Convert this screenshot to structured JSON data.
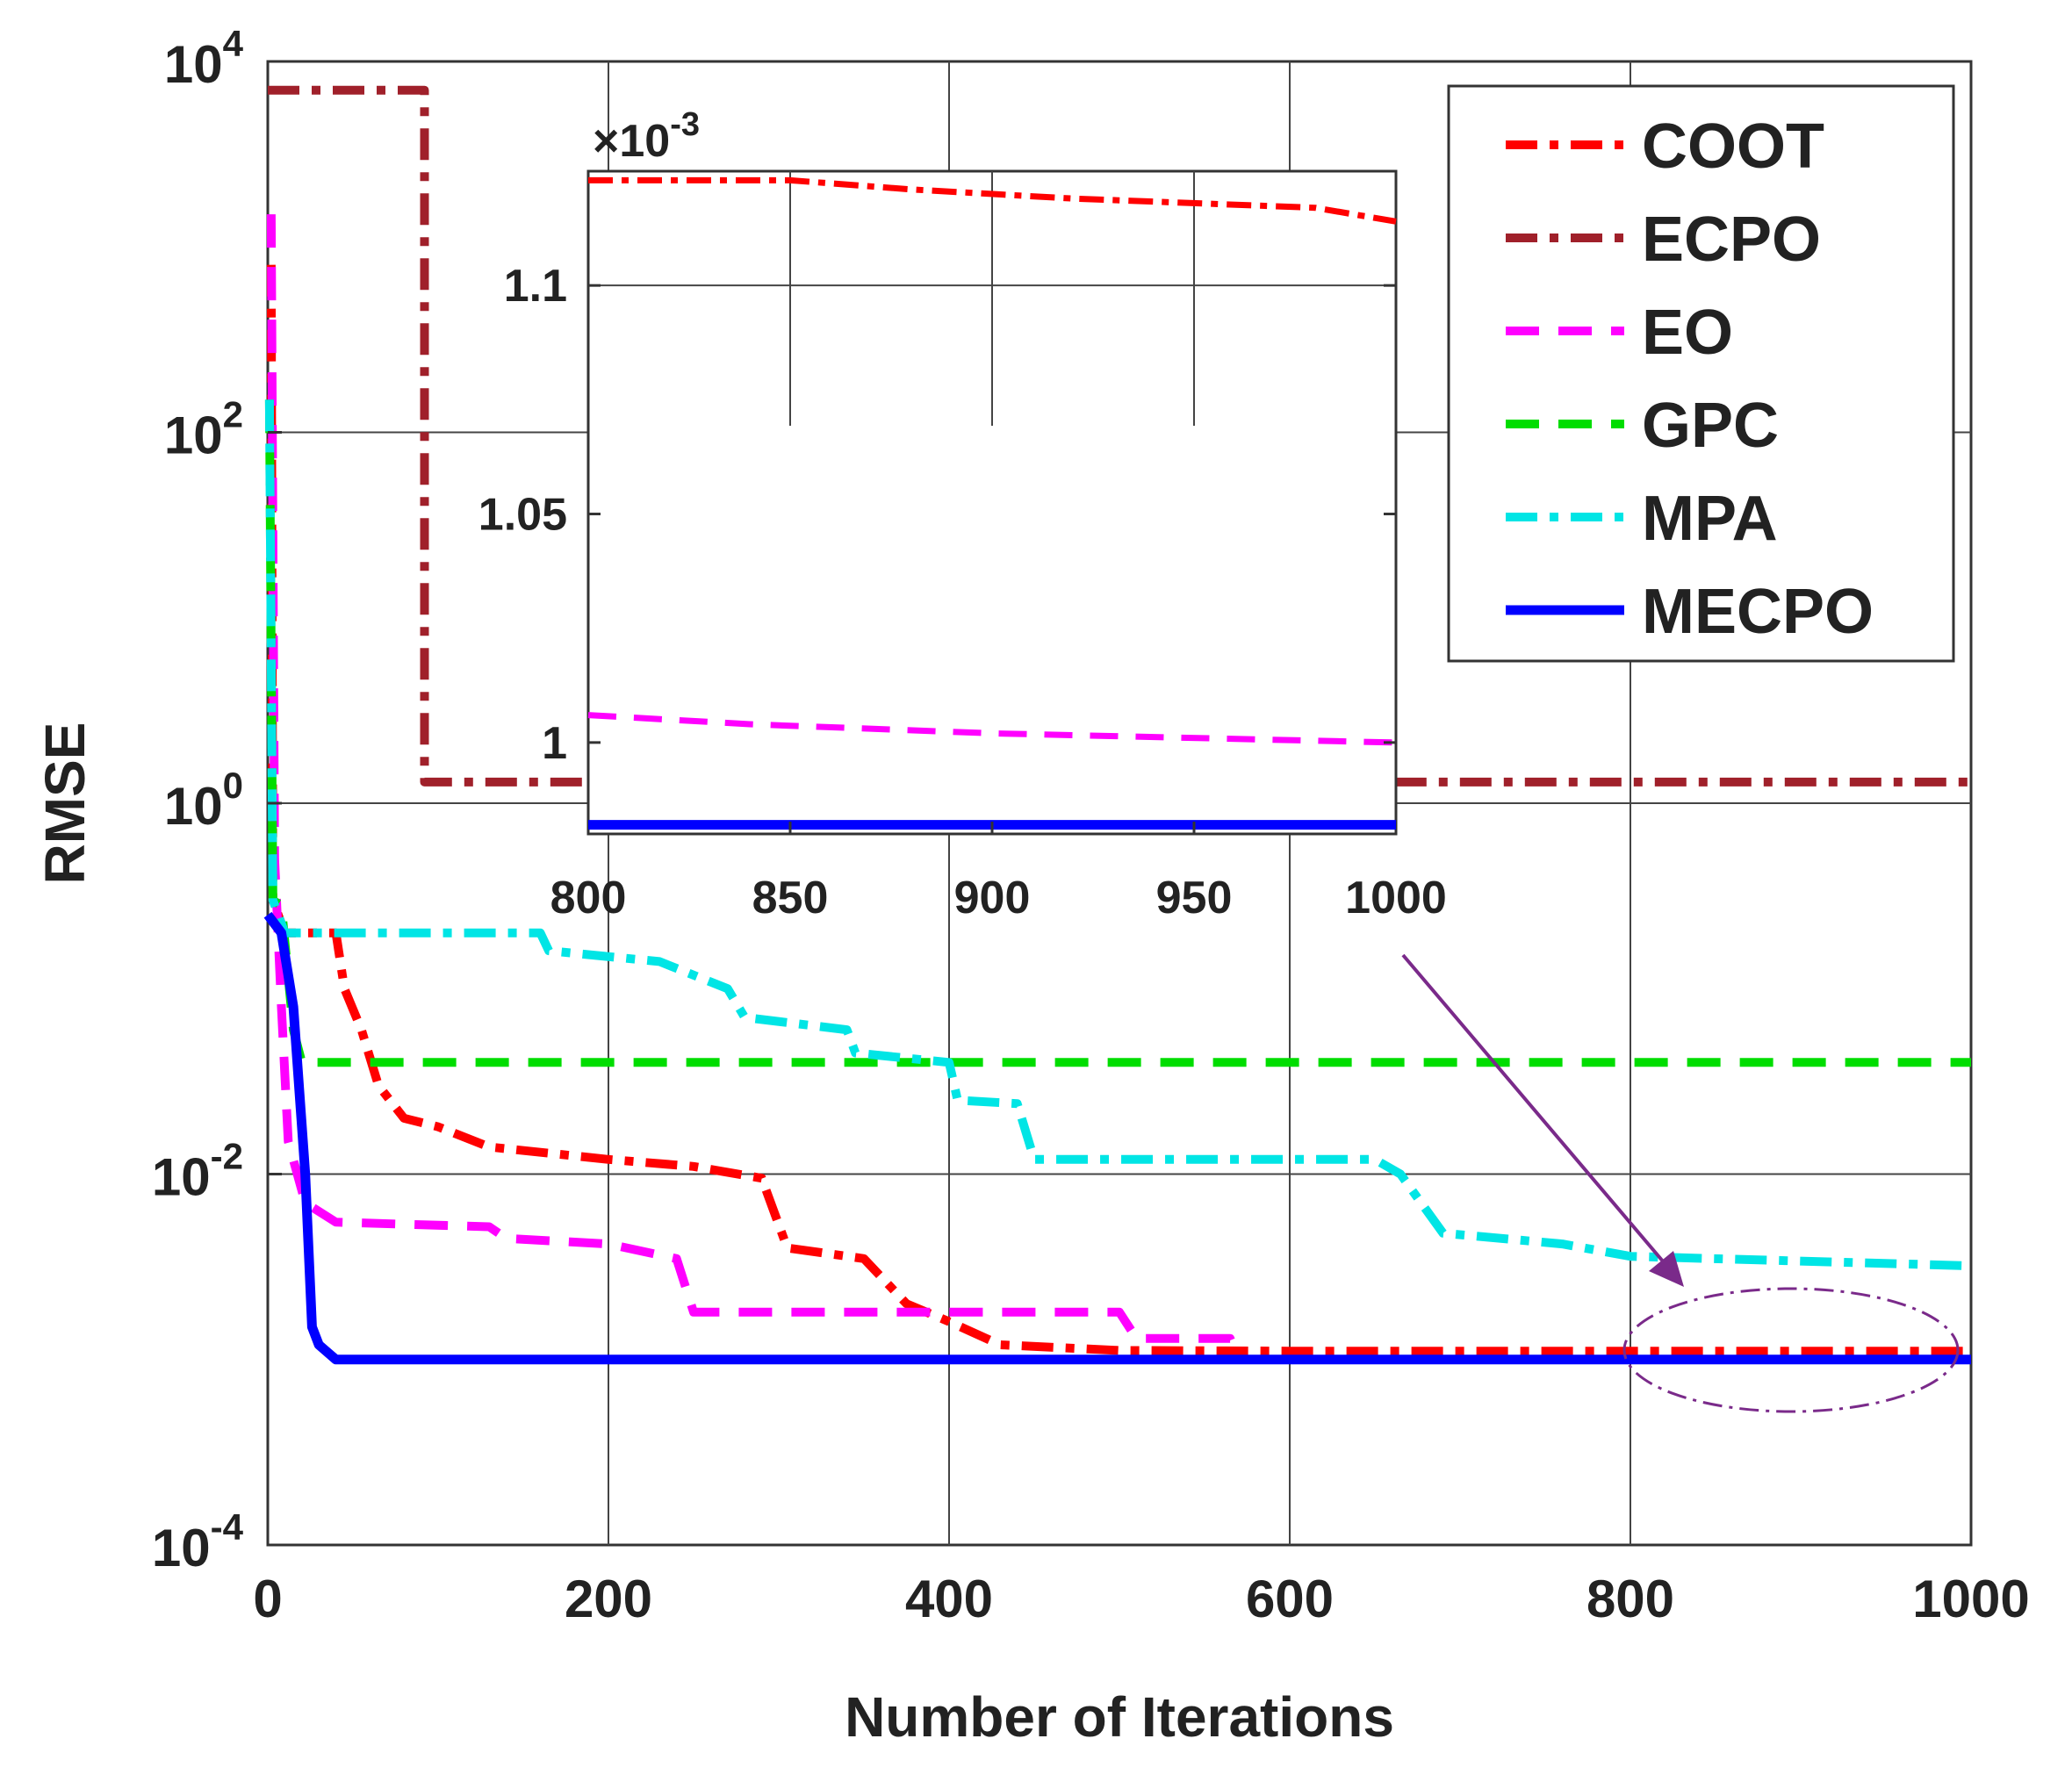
{
  "chart_data": {
    "type": "line",
    "xlabel": "Number of Iterations",
    "ylabel": "RMSE",
    "yscale": "log",
    "xlim": [
      0,
      1000
    ],
    "ylim": [
      0.0001,
      10000
    ],
    "xticks": [
      "0",
      "200",
      "400",
      "600",
      "800",
      "1000"
    ],
    "yticks": [
      {
        "base": "10",
        "exp": "4"
      },
      {
        "base": "10",
        "exp": "2"
      },
      {
        "base": "10",
        "exp": "0"
      },
      {
        "base": "10",
        "exp": "-2"
      },
      {
        "base": "10",
        "exp": "-4"
      }
    ],
    "grid": true,
    "legend_position": "top-right",
    "series": [
      {
        "name": "COOT",
        "color": "#ff0000",
        "style": "dashdot",
        "points": [
          [
            2,
            800
          ],
          [
            3,
            0.3
          ],
          [
            10,
            0.2
          ],
          [
            40,
            0.2
          ],
          [
            45,
            0.1
          ],
          [
            55,
            0.06
          ],
          [
            65,
            0.03
          ],
          [
            80,
            0.02
          ],
          [
            100,
            0.018
          ],
          [
            130,
            0.014
          ],
          [
            200,
            0.012
          ],
          [
            250,
            0.011
          ],
          [
            290,
            0.0095
          ],
          [
            305,
            0.004
          ],
          [
            350,
            0.0035
          ],
          [
            375,
            0.002
          ],
          [
            400,
            0.0016
          ],
          [
            430,
            0.0012
          ],
          [
            500,
            0.00112
          ],
          [
            600,
            0.00111
          ],
          [
            800,
            0.00111
          ],
          [
            1000,
            0.00111
          ]
        ]
      },
      {
        "name": "ECPO",
        "color": "#a0202a",
        "style": "dashdot",
        "points": [
          [
            0,
            7000
          ],
          [
            92,
            7000
          ],
          [
            92,
            1.3
          ],
          [
            1000,
            1.3
          ]
        ]
      },
      {
        "name": "EO",
        "color": "#ff00ff",
        "style": "dashed",
        "points": [
          [
            2,
            1500
          ],
          [
            4,
            0.5
          ],
          [
            8,
            0.08
          ],
          [
            12,
            0.015
          ],
          [
            22,
            0.007
          ],
          [
            40,
            0.0055
          ],
          [
            130,
            0.0052
          ],
          [
            140,
            0.0045
          ],
          [
            200,
            0.0042
          ],
          [
            240,
            0.0035
          ],
          [
            250,
            0.0018
          ],
          [
            500,
            0.0018
          ],
          [
            510,
            0.0013
          ],
          [
            565,
            0.0013
          ],
          [
            570,
            0.001
          ],
          [
            1000,
            0.001
          ]
        ]
      },
      {
        "name": "GPC",
        "color": "#00dd00",
        "style": "dashed",
        "points": [
          [
            1,
            150
          ],
          [
            3,
            0.3
          ],
          [
            8,
            0.28
          ],
          [
            15,
            0.06
          ],
          [
            20,
            0.04
          ],
          [
            1000,
            0.04
          ]
        ]
      },
      {
        "name": "MPA",
        "color": "#00e5e5",
        "style": "dashdot",
        "points": [
          [
            1,
            150
          ],
          [
            3,
            0.3
          ],
          [
            10,
            0.2
          ],
          [
            160,
            0.2
          ],
          [
            165,
            0.16
          ],
          [
            230,
            0.14
          ],
          [
            270,
            0.1
          ],
          [
            280,
            0.07
          ],
          [
            340,
            0.06
          ],
          [
            345,
            0.045
          ],
          [
            400,
            0.04
          ],
          [
            405,
            0.025
          ],
          [
            440,
            0.024
          ],
          [
            450,
            0.012
          ],
          [
            650,
            0.012
          ],
          [
            665,
            0.01
          ],
          [
            690,
            0.0048
          ],
          [
            760,
            0.0042
          ],
          [
            800,
            0.0036
          ],
          [
            1000,
            0.0032
          ]
        ]
      },
      {
        "name": "MECPO",
        "color": "#0000ff",
        "style": "solid",
        "points": [
          [
            0,
            0.25
          ],
          [
            8,
            0.2
          ],
          [
            15,
            0.08
          ],
          [
            22,
            0.01
          ],
          [
            26,
            0.0015
          ],
          [
            30,
            0.0012
          ],
          [
            40,
            0.001
          ],
          [
            1000,
            0.001
          ]
        ]
      }
    ],
    "inset": {
      "xlim": [
        800,
        1000
      ],
      "ylim": [
        0.00098,
        0.001125
      ],
      "xticks": [
        "800",
        "850",
        "900",
        "950",
        "1000"
      ],
      "yticks": [
        "1.1",
        "1.05",
        "1"
      ],
      "y_multiplier": {
        "prefix": "×10",
        "exp": "-3"
      },
      "series": [
        {
          "name": "COOT",
          "points": [
            [
              800,
              0.001123
            ],
            [
              850,
              0.001123
            ],
            [
              880,
              0.001121
            ],
            [
              920,
              0.001119
            ],
            [
              980,
              0.001117
            ],
            [
              1000,
              0.001114
            ]
          ]
        },
        {
          "name": "EO",
          "points": [
            [
              800,
              0.001006
            ],
            [
              840,
              0.001004
            ],
            [
              900,
              0.001002
            ],
            [
              1000,
              0.001
            ]
          ]
        },
        {
          "name": "MECPO",
          "points": [
            [
              800,
              0.000982
            ],
            [
              1000,
              0.000982
            ]
          ]
        }
      ]
    }
  }
}
